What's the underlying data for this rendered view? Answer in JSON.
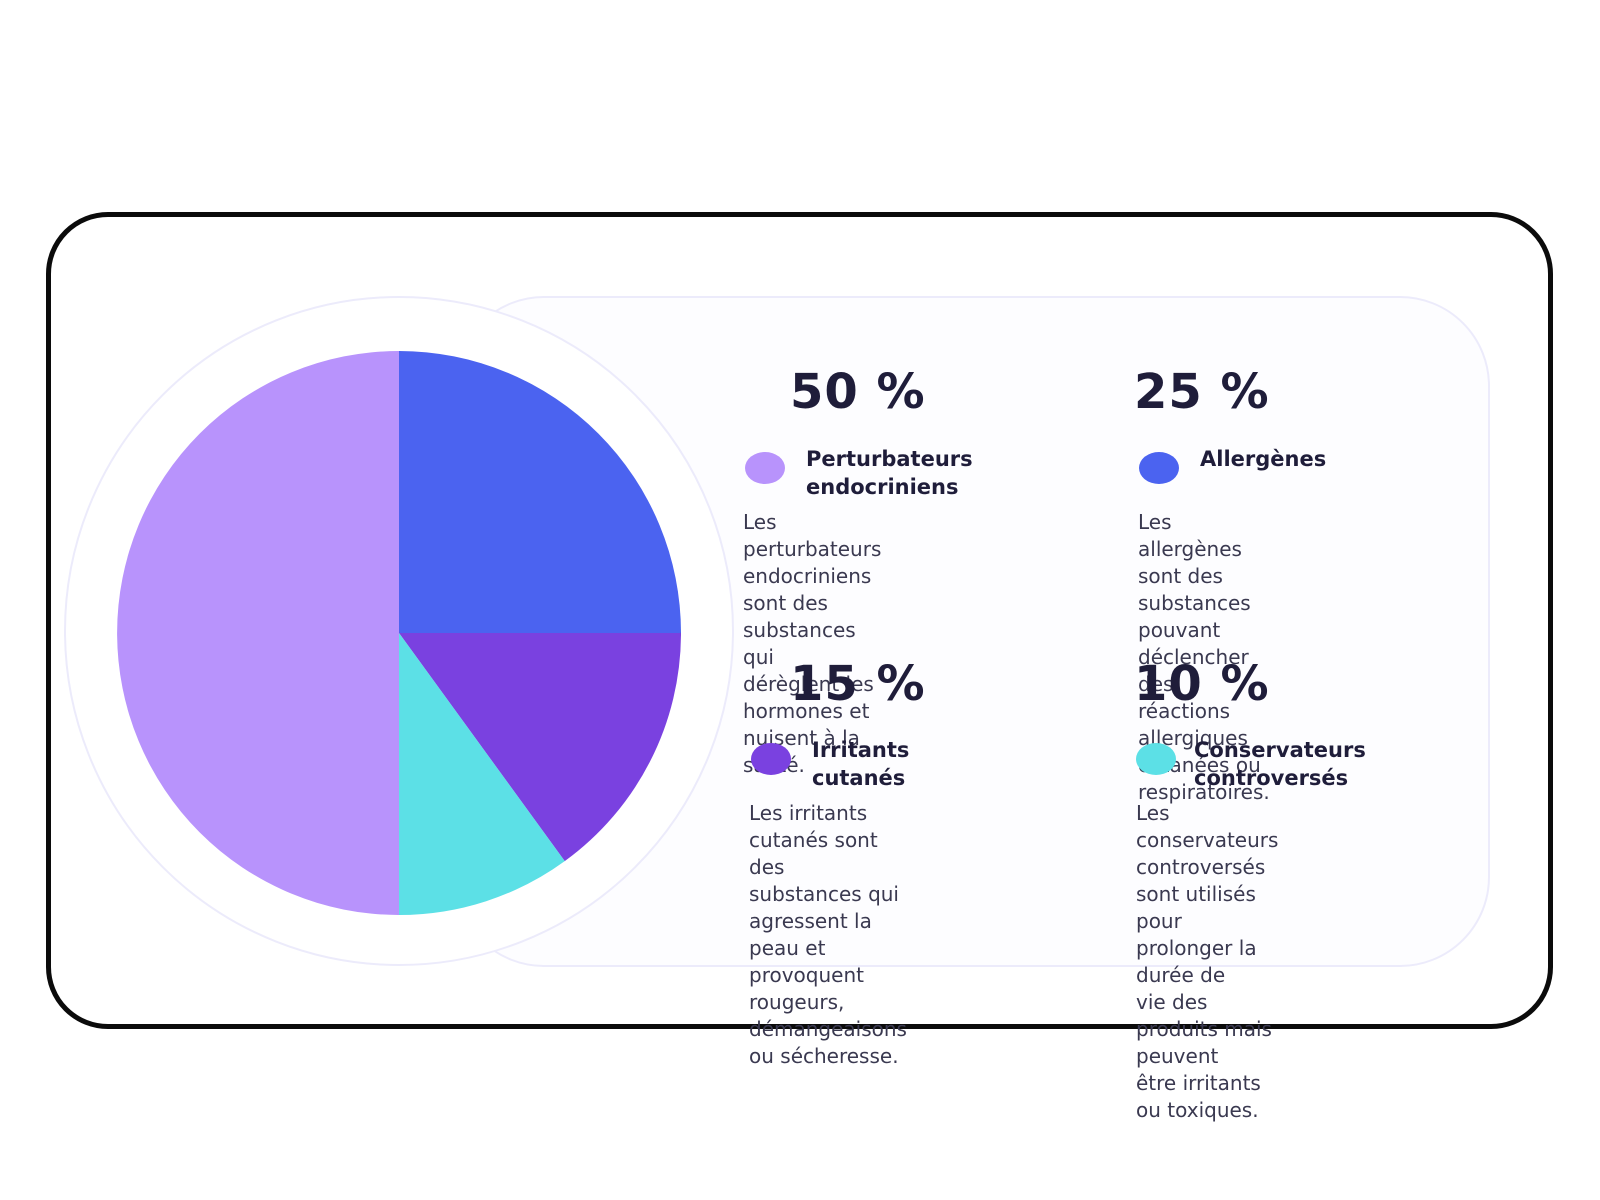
{
  "chart_data": {
    "type": "pie",
    "categories": [
      "Perturbateurs endocriniens",
      "Allergènes",
      "Irritants cutanés",
      "Conservateurs controversés"
    ],
    "values": [
      50,
      25,
      15,
      10
    ],
    "colors": {
      "Perturbateurs endocriniens": "#b893fc",
      "Allergènes": "#4b63f0",
      "Irritants cutanés": "#7a41e0",
      "Conservateurs controversés": "#5ce0e6"
    },
    "start": "12 o'clock",
    "direction": "clockwise",
    "slice_order": [
      "Allergènes",
      "Irritants cutanés",
      "Conservateurs controversés",
      "Perturbateurs endocriniens"
    ]
  },
  "items": [
    {
      "percent": "50 %",
      "name_lines": [
        "Perturbateurs",
        "endocriniens"
      ],
      "desc_lines": [
        "Les perturbateurs endocriniens",
        "sont des substances qui",
        "dérèglent les hormones et",
        "nuisent à la santé."
      ],
      "color": "#b893fc"
    },
    {
      "percent": "25 %",
      "name_lines": [
        "Allergènes"
      ],
      "desc_lines": [
        "Les allergènes sont des",
        "substances pouvant déclencher",
        "des réactions allergiques",
        "cutanées ou respiratoires."
      ],
      "color": "#4b63f0"
    },
    {
      "percent": "15 %",
      "name_lines": [
        "Irritants",
        "cutanés"
      ],
      "desc_lines": [
        "Les irritants cutanés sont des",
        "substances qui agressent la",
        "peau et provoquent rougeurs,",
        "démangeaisons ou sécheresse."
      ],
      "color": "#7a41e0"
    },
    {
      "percent": "10 %",
      "name_lines": [
        "Conservateurs",
        "controversés"
      ],
      "desc_lines": [
        "Les conservateurs",
        "controversés sont utilisés",
        "pour prolonger la durée de",
        "vie des produits mais peuvent",
        "être irritants ou toxiques."
      ],
      "color": "#5ce0e6"
    }
  ]
}
